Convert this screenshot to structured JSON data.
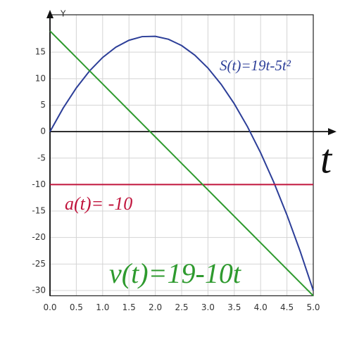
{
  "chart_data": {
    "type": "line",
    "y_label": "Y",
    "x_label": "t",
    "x": [
      0,
      0.25,
      0.5,
      0.75,
      1,
      1.25,
      1.5,
      1.75,
      2,
      2.25,
      2.5,
      2.75,
      3,
      3.25,
      3.5,
      3.75,
      4,
      4.25,
      4.5,
      4.75,
      5
    ],
    "series": [
      {
        "name": "S(t)=19t-5t²",
        "color": "#2c3e98",
        "values": [
          0,
          4.4375,
          8.25,
          11.4375,
          14,
          15.9375,
          17.25,
          17.9375,
          18,
          17.4375,
          16.25,
          14.4375,
          12,
          8.9375,
          5.25,
          0.9375,
          -4,
          -9.5625,
          -15.75,
          -22.5625,
          -30
        ]
      },
      {
        "name": "a(t)= -10",
        "color": "#c0143c",
        "values": [
          -10,
          -10,
          -10,
          -10,
          -10,
          -10,
          -10,
          -10,
          -10,
          -10,
          -10,
          -10,
          -10,
          -10,
          -10,
          -10,
          -10,
          -10,
          -10,
          -10,
          -10
        ]
      },
      {
        "name": "v(t)=19-10t",
        "color": "#2e9a2e",
        "values": [
          19,
          16.5,
          14,
          11.5,
          9,
          6.5,
          4,
          1.5,
          -1,
          -3.5,
          -6,
          -8.5,
          -11,
          -13.5,
          -16,
          -18.5,
          -21,
          -23.5,
          -26,
          -28.5,
          -31
        ]
      }
    ],
    "xlim": [
      0,
      5
    ],
    "xticks": [
      {
        "value": 0,
        "label": "0.0"
      },
      {
        "value": 0.5,
        "label": "0.5"
      },
      {
        "value": 1,
        "label": "1.0"
      },
      {
        "value": 1.5,
        "label": "1.5"
      },
      {
        "value": 2,
        "label": "2.0"
      },
      {
        "value": 2.5,
        "label": "2.5"
      },
      {
        "value": 3,
        "label": "3.0"
      },
      {
        "value": 3.5,
        "label": "3.5"
      },
      {
        "value": 4,
        "label": "4.0"
      },
      {
        "value": 4.5,
        "label": "4.5"
      },
      {
        "value": 5,
        "label": "5.0"
      }
    ],
    "ylim": [
      -31,
      21
    ],
    "yticks": [
      15,
      10,
      5,
      0,
      -5,
      -10,
      -15,
      -20,
      -25,
      -30
    ],
    "grid": true
  }
}
